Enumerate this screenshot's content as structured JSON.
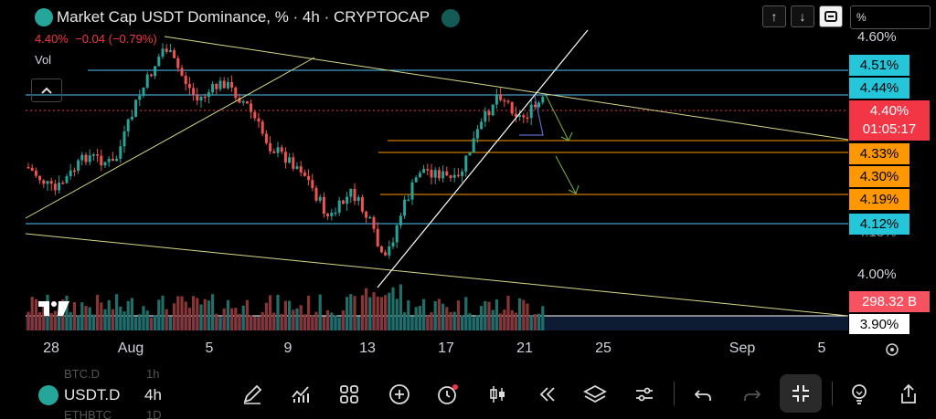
{
  "header": {
    "title": "Market Cap USDT Dominance, % · 4h · CRYPTOCAP",
    "price": "4.40%",
    "change": "−0.04 (−0.79%)",
    "volume_label": "Vol"
  },
  "toolbar_top": {
    "arrow_up": "↑",
    "arrow_down": "↓",
    "percent_field": "%"
  },
  "price_axis": {
    "labels": [
      {
        "text": "4.60%"
      },
      {
        "text": "4.00%"
      }
    ],
    "tags": [
      {
        "text": "4.51%",
        "bg": "#26c6da",
        "fg": "#000000"
      },
      {
        "text": "4.44%",
        "bg": "#26c6da",
        "fg": "#000000"
      },
      {
        "text": "4.33%",
        "bg": "#ff9800",
        "fg": "#000000"
      },
      {
        "text": "4.30%",
        "bg": "#ff9800",
        "fg": "#000000"
      },
      {
        "text": "4.19%",
        "bg": "#ff9800",
        "fg": "#000000"
      },
      {
        "text": "4.12%",
        "bg": "#26c6da",
        "fg": "#000000"
      }
    ],
    "current": {
      "price": "4.40%",
      "countdown": "01:05:17",
      "bg": "#f23645"
    },
    "volume_tag": {
      "text": "298.32 B",
      "bg": "#f7525f"
    },
    "bottom_tag": {
      "text": "3.90%"
    },
    "partial_label": "4.15%"
  },
  "time_axis": {
    "labels": [
      "28",
      "Aug",
      "5",
      "9",
      "13",
      "17",
      "21",
      "25",
      "Sep",
      "5"
    ]
  },
  "bottom_bar": {
    "symbol": "USDT.D",
    "timeframe": "4h",
    "ghost_symbols": [
      "BTC.D",
      "1h",
      "ETHBTC",
      "1D"
    ]
  },
  "colors": {
    "up": "#26a69a",
    "down": "#ef5350",
    "cyan_line": "#4fc3f7",
    "orange_line": "#ff9800",
    "trend_line": "#d9d98c"
  },
  "icons": [
    "pencil-icon",
    "indicators-icon",
    "grid-icon",
    "plus-circle-icon",
    "alert-clock-icon",
    "candles-icon",
    "replay-icon",
    "layers-icon",
    "settings-sliders-icon",
    "undo-icon",
    "redo-icon",
    "collapse-fullscreen-icon",
    "lightbulb-icon",
    "share-icon"
  ]
}
